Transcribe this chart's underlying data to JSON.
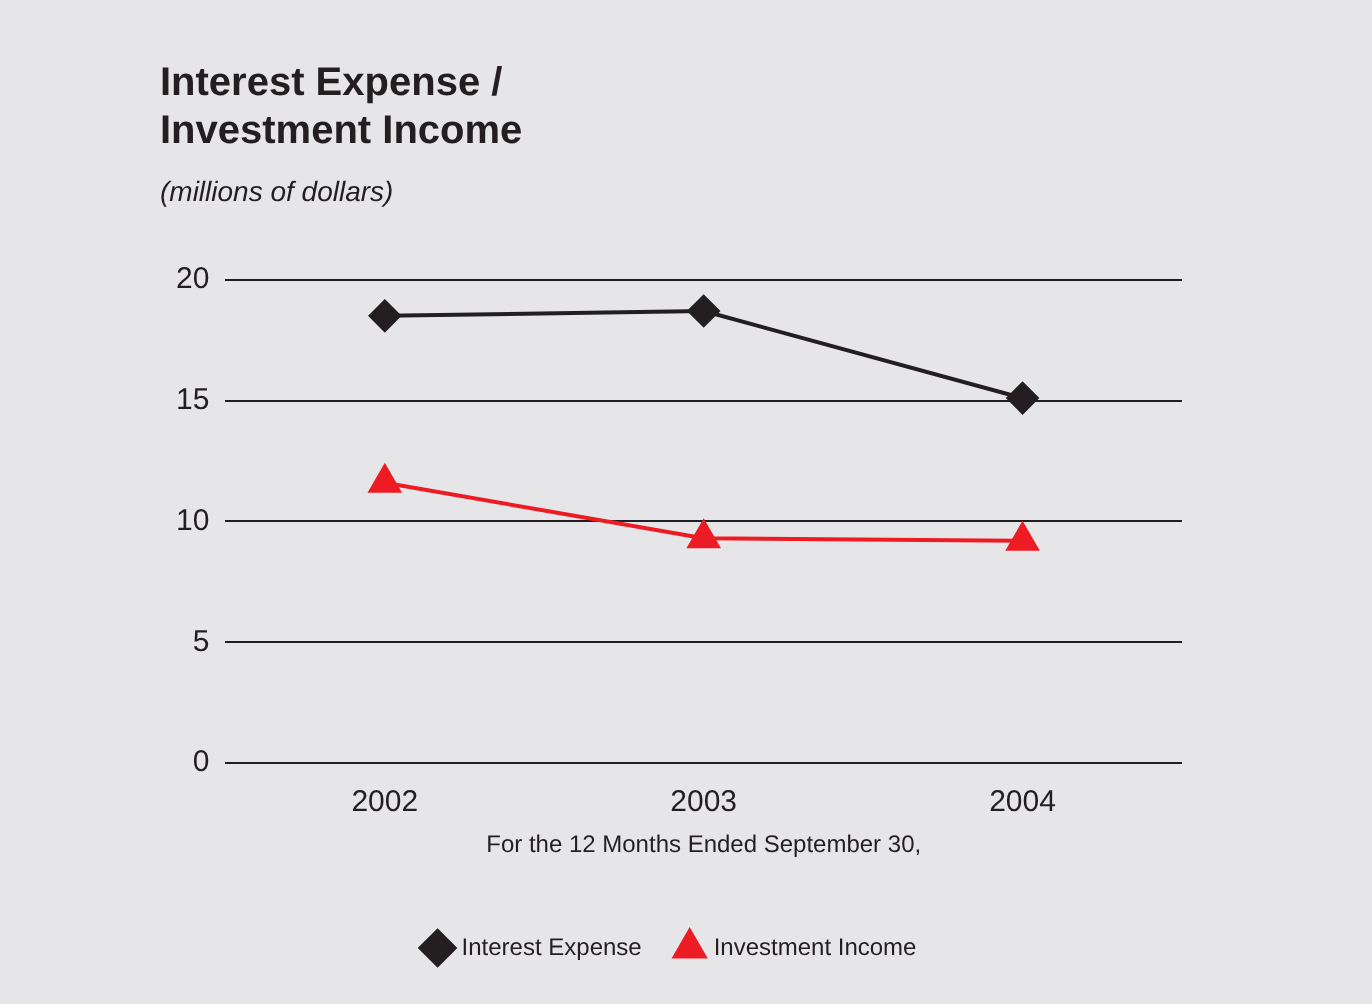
{
  "chart_data": {
    "type": "line",
    "title": "Interest Expense /\nInvestment Income",
    "subtitle": "(millions of dollars)",
    "xlabel": "For the 12 Months Ended September 30,",
    "categories": [
      "2002",
      "2003",
      "2004"
    ],
    "series": [
      {
        "name": "Interest Expense",
        "color": "#231f20",
        "marker": "diamond",
        "values": [
          18.5,
          18.7,
          15.1
        ]
      },
      {
        "name": "Investment Income",
        "color": "#ed1c24",
        "marker": "triangle",
        "values": [
          11.6,
          9.3,
          9.2
        ]
      }
    ],
    "ylim": [
      0,
      20
    ],
    "yticks": [
      0,
      5,
      10,
      15,
      20
    ],
    "grid": "y",
    "legend": "bottom",
    "line_style": "solid"
  }
}
